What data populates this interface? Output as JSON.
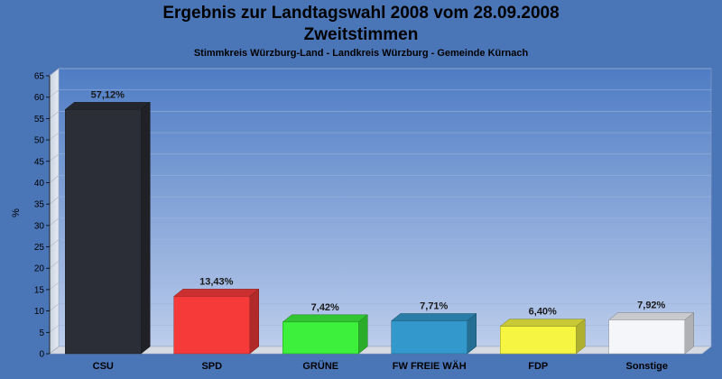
{
  "chart_data": {
    "type": "bar",
    "title": "Ergebnis zur Landtagswahl 2008 vom 28.09.2008",
    "title_line2": "Zweitstimmen",
    "subtitle": "Stimmkreis Würzburg-Land - Landkreis Würzburg - Gemeinde Kürnach",
    "ylabel": "%",
    "xlabel": "",
    "ylim": [
      0,
      65
    ],
    "yticks": [
      0,
      5,
      10,
      15,
      20,
      25,
      30,
      35,
      40,
      45,
      50,
      55,
      60,
      65
    ],
    "grid": true,
    "legend": "none",
    "categories": [
      "CSU",
      "SPD",
      "GRÜNE",
      "FW FREIE WÄH",
      "FDP",
      "Sonstige"
    ],
    "values": [
      57.12,
      13.43,
      7.42,
      7.71,
      6.4,
      7.92
    ],
    "value_labels": [
      "57,12%",
      "13,43%",
      "7,42%",
      "7,71%",
      "6,40%",
      "7,92%"
    ],
    "colors": [
      "#2b2e36",
      "#f63a3a",
      "#3cf03c",
      "#3399cc",
      "#f5f542",
      "#f4f6fa"
    ]
  },
  "colors": {
    "background": "#4a76b8",
    "plot_top": "#4e7cc4",
    "plot_bottom": "#b9cbec"
  }
}
